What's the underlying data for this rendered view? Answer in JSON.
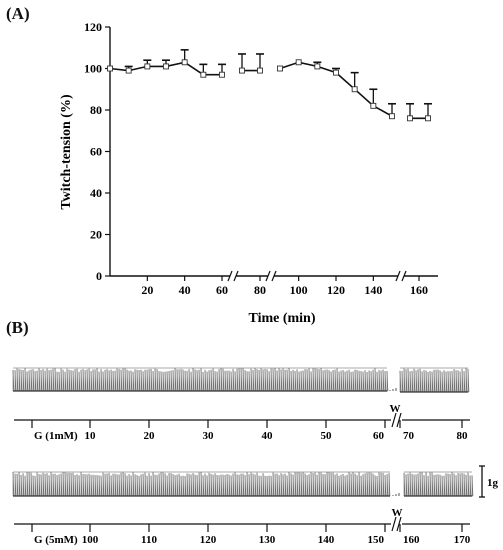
{
  "panel_a": {
    "label": "(A)"
  },
  "panel_b": {
    "label": "(B)"
  },
  "chart_data": [
    {
      "type": "line",
      "xlabel": "Time (min)",
      "ylabel": "Twitch-tension (%)",
      "ylim": [
        0,
        120
      ],
      "yticks": [
        0,
        20,
        40,
        60,
        80,
        100,
        120
      ],
      "xtick_labels": [
        "20",
        "40",
        "60",
        "80",
        "100",
        "120",
        "140",
        "160"
      ],
      "grid": false,
      "series": [
        {
          "segments": [
            {
              "x": [
                0,
                10,
                20,
                30,
                40,
                50,
                60
              ],
              "y": [
                100,
                99,
                101,
                101,
                103,
                97,
                97
              ],
              "err": [
                0,
                2,
                3,
                3,
                6,
                5,
                5
              ]
            },
            {
              "x": [
                70,
                80
              ],
              "y": [
                99,
                99
              ],
              "err": [
                8,
                8
              ]
            },
            {
              "x": [
                90,
                100,
                110,
                120,
                130,
                140,
                150
              ],
              "y": [
                100,
                103,
                101,
                98,
                90,
                82,
                77
              ],
              "err": [
                0,
                0,
                2,
                2,
                8,
                8,
                6
              ]
            },
            {
              "x": [
                155,
                165
              ],
              "y": [
                76,
                76
              ],
              "err": [
                7,
                7
              ]
            }
          ]
        }
      ]
    },
    {
      "type": "trace",
      "treatment_label": "G (1mM)",
      "washout_label": "W",
      "x_ticks": [
        "10",
        "20",
        "30",
        "40",
        "50",
        "60",
        "70",
        "80"
      ]
    },
    {
      "type": "trace",
      "treatment_label": "G (5mM)",
      "washout_label": "W",
      "x_ticks": [
        "100",
        "110",
        "120",
        "130",
        "140",
        "150",
        "160",
        "170"
      ],
      "scale_bar_label": "1g"
    }
  ]
}
